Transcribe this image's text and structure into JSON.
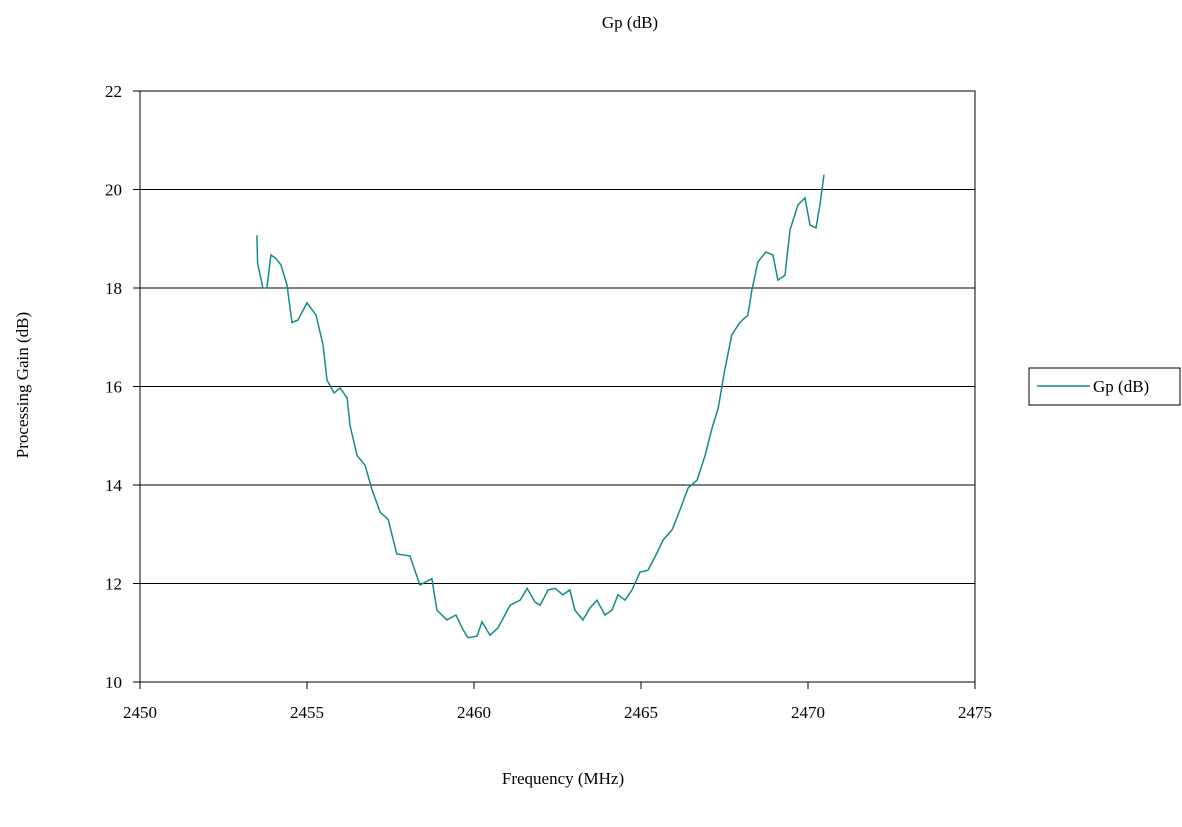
{
  "chart_data": {
    "type": "line",
    "title": "Gp (dB)",
    "xlabel": "Frequency (MHz)",
    "ylabel": "Processing Gain (dB)",
    "xlim": [
      2450,
      2475
    ],
    "xticks": [
      2450,
      2455,
      2460,
      2465,
      2470,
      2475
    ],
    "ylim": [
      10,
      22
    ],
    "yticks": [
      10,
      12,
      14,
      16,
      18,
      20,
      22
    ],
    "grid": true,
    "legend": "right",
    "x": [
      2453.5,
      2453.52,
      2453.68,
      2453.8,
      2453.92,
      2454.07,
      2454.22,
      2454.4,
      2454.55,
      2454.73,
      2455.0,
      2455.27,
      2455.48,
      2455.6,
      2455.81,
      2455.99,
      2456.2,
      2456.29,
      2456.5,
      2456.74,
      2456.95,
      2457.19,
      2457.43,
      2457.69,
      2458.08,
      2458.38,
      2458.74,
      2458.89,
      2459.19,
      2459.46,
      2459.67,
      2459.82,
      2460.09,
      2460.24,
      2460.48,
      2460.72,
      2461.08,
      2461.38,
      2461.59,
      2461.83,
      2461.98,
      2462.22,
      2462.43,
      2462.66,
      2462.87,
      2463.02,
      2463.26,
      2463.47,
      2463.68,
      2463.92,
      2464.13,
      2464.31,
      2464.52,
      2464.73,
      2464.97,
      2465.21,
      2465.45,
      2465.66,
      2465.93,
      2466.17,
      2466.41,
      2466.68,
      2466.92,
      2467.13,
      2467.31,
      2467.51,
      2467.72,
      2467.96,
      2468.2,
      2468.32,
      2468.5,
      2468.74,
      2468.95,
      2469.1,
      2469.31,
      2469.46,
      2469.7,
      2469.91,
      2470.06,
      2470.24,
      2470.36,
      2470.48
    ],
    "series": [
      {
        "name": "Gp (dB)",
        "color": "#138a8a",
        "values": [
          19.07,
          18.5,
          18.0,
          18.0,
          18.67,
          18.6,
          18.47,
          18.06,
          17.3,
          17.35,
          17.7,
          17.45,
          16.85,
          16.13,
          15.87,
          15.97,
          15.77,
          15.2,
          14.6,
          14.4,
          13.9,
          13.45,
          13.3,
          12.6,
          12.56,
          11.97,
          12.1,
          11.46,
          11.26,
          11.36,
          11.06,
          10.9,
          10.93,
          11.22,
          10.95,
          11.1,
          11.56,
          11.66,
          11.9,
          11.62,
          11.56,
          11.87,
          11.9,
          11.77,
          11.87,
          11.46,
          11.26,
          11.5,
          11.66,
          11.36,
          11.46,
          11.77,
          11.66,
          11.87,
          12.23,
          12.27,
          12.58,
          12.88,
          13.09,
          13.5,
          13.94,
          14.1,
          14.6,
          15.16,
          15.56,
          16.34,
          17.05,
          17.3,
          17.45,
          17.96,
          18.53,
          18.73,
          18.67,
          18.16,
          18.26,
          19.18,
          19.69,
          19.83,
          19.28,
          19.22,
          19.69,
          20.3
        ]
      }
    ]
  }
}
